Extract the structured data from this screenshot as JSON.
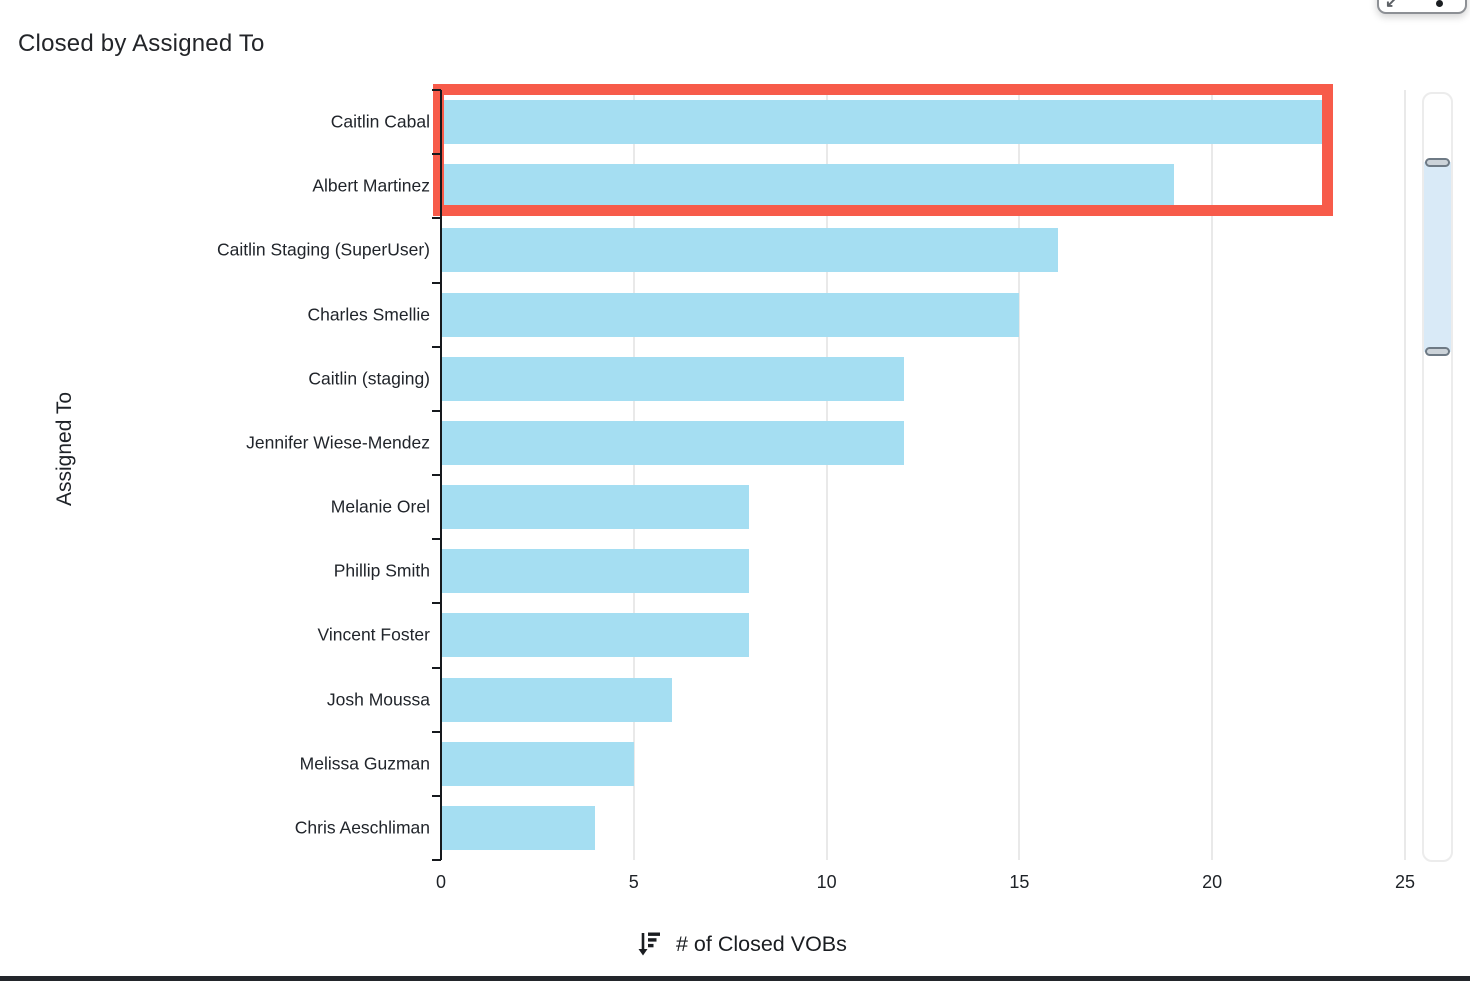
{
  "header": {
    "title": "Closed by Assigned To"
  },
  "widget_controls": {
    "restore_arrow": "↙"
  },
  "chart_data": {
    "type": "bar",
    "orientation": "horizontal",
    "title": "Closed by Assigned To",
    "categories": [
      "Caitlin Cabal",
      "Albert Martinez",
      "Caitlin Staging (SuperUser)",
      "Charles Smellie",
      "Caitlin (staging)",
      "Jennifer Wiese-Mendez",
      "Melanie Orel",
      "Phillip Smith",
      "Vincent Foster",
      "Josh Moussa",
      "Melissa Guzman",
      "Chris Aeschliman"
    ],
    "values": [
      23,
      19,
      16,
      15,
      12,
      12,
      8,
      8,
      8,
      6,
      5,
      4
    ],
    "xlabel": "# of Closed VOBs",
    "ylabel": "Assigned To",
    "xlim": [
      0,
      25
    ],
    "x_ticks": [
      0,
      5,
      10,
      15,
      20,
      25
    ],
    "grid": "vertical-only",
    "sort": "descending",
    "legend": "none",
    "bar_color": "#a5def2",
    "annotation": {
      "type": "highlight-box",
      "color": "#f75b4a",
      "highlighted_categories": [
        "Caitlin Cabal",
        "Albert Martinez"
      ]
    }
  }
}
